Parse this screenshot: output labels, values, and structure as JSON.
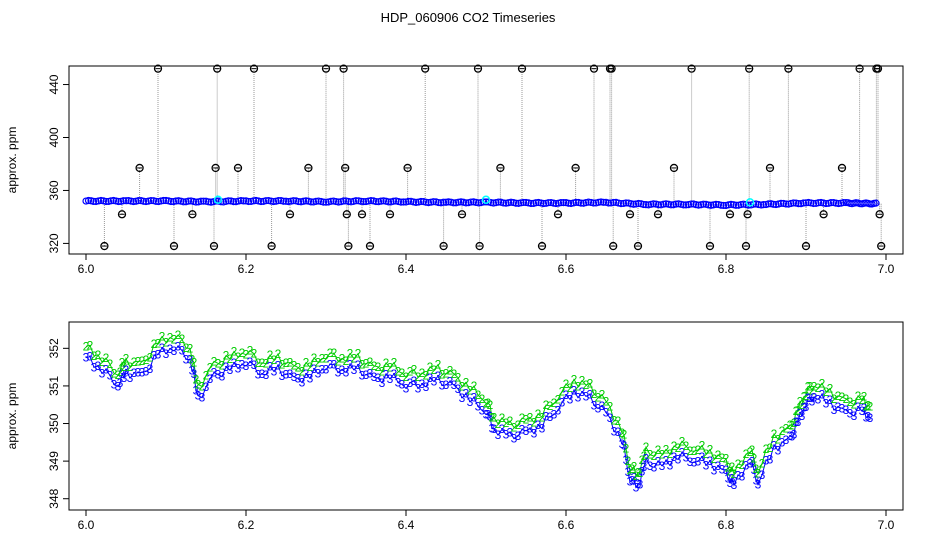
{
  "title": "HDP_060906  CO2 Timeseries",
  "colors": {
    "axis": "#000000",
    "black": "#000000",
    "blue": "#0000ff",
    "cyan": "#00ffff",
    "green": "#00cc00",
    "gray": "#999999"
  },
  "chart_data": [
    {
      "type": "scatter",
      "title": "HDP_060906  CO2 Timeseries",
      "xlabel": "",
      "ylabel": "approx. ppm",
      "xlim": [
        6.0,
        7.0
      ],
      "ylim": [
        312,
        454
      ],
      "xticks": [
        "6.0",
        "6.2",
        "6.4",
        "6.6",
        "6.8",
        "7.0"
      ],
      "yticks": [
        "320",
        "360",
        "400",
        "440"
      ],
      "baseline": [
        [
          6.0,
          352
        ],
        [
          6.05,
          352
        ],
        [
          6.1,
          352
        ],
        [
          6.15,
          351.5
        ],
        [
          6.2,
          352
        ],
        [
          6.25,
          352
        ],
        [
          6.3,
          351.5
        ],
        [
          6.35,
          352
        ],
        [
          6.4,
          351.5
        ],
        [
          6.45,
          351
        ],
        [
          6.5,
          351
        ],
        [
          6.55,
          350.5
        ],
        [
          6.6,
          350.5
        ],
        [
          6.65,
          351
        ],
        [
          6.7,
          349.5
        ],
        [
          6.75,
          349.5
        ],
        [
          6.8,
          349
        ],
        [
          6.85,
          349.5
        ],
        [
          6.9,
          350.5
        ],
        [
          6.95,
          350.5
        ],
        [
          6.99,
          350
        ]
      ],
      "cyan_points": [
        [
          6.165,
          353
        ],
        [
          6.5,
          353
        ],
        [
          6.83,
          351
        ]
      ],
      "outliers": [
        [
          6.023,
          318
        ],
        [
          6.045,
          342
        ],
        [
          6.067,
          377
        ],
        [
          6.09,
          452
        ],
        [
          6.11,
          318
        ],
        [
          6.133,
          342
        ],
        [
          6.16,
          318
        ],
        [
          6.162,
          377
        ],
        [
          6.164,
          452
        ],
        [
          6.19,
          377
        ],
        [
          6.21,
          452
        ],
        [
          6.232,
          318
        ],
        [
          6.255,
          342
        ],
        [
          6.278,
          377
        ],
        [
          6.3,
          452
        ],
        [
          6.322,
          452
        ],
        [
          6.324,
          377
        ],
        [
          6.326,
          342
        ],
        [
          6.328,
          318
        ],
        [
          6.345,
          342
        ],
        [
          6.355,
          318
        ],
        [
          6.38,
          342
        ],
        [
          6.402,
          377
        ],
        [
          6.424,
          452
        ],
        [
          6.447,
          318
        ],
        [
          6.47,
          342
        ],
        [
          6.49,
          452
        ],
        [
          6.492,
          318
        ],
        [
          6.518,
          377
        ],
        [
          6.545,
          452
        ],
        [
          6.57,
          318
        ],
        [
          6.59,
          342
        ],
        [
          6.612,
          377
        ],
        [
          6.635,
          452
        ],
        [
          6.655,
          452
        ],
        [
          6.657,
          452
        ],
        [
          6.659,
          318
        ],
        [
          6.68,
          342
        ],
        [
          6.69,
          318
        ],
        [
          6.715,
          342
        ],
        [
          6.735,
          377
        ],
        [
          6.757,
          452
        ],
        [
          6.78,
          318
        ],
        [
          6.805,
          342
        ],
        [
          6.825,
          318
        ],
        [
          6.827,
          342
        ],
        [
          6.829,
          452
        ],
        [
          6.855,
          377
        ],
        [
          6.878,
          452
        ],
        [
          6.9,
          318
        ],
        [
          6.922,
          342
        ],
        [
          6.945,
          377
        ],
        [
          6.967,
          452
        ],
        [
          6.988,
          452
        ],
        [
          6.99,
          452
        ],
        [
          6.992,
          342
        ],
        [
          6.994,
          318
        ]
      ]
    },
    {
      "type": "scatter",
      "title": "",
      "xlabel": "",
      "ylabel": "approx. ppm",
      "xlim": [
        6.0,
        7.0
      ],
      "ylim": [
        347.7,
        352.7
      ],
      "xticks": [
        "6.0",
        "6.2",
        "6.4",
        "6.6",
        "6.8",
        "7.0"
      ],
      "yticks": [
        "348",
        "349",
        "350",
        "351",
        "352"
      ],
      "series": [
        {
          "marker": "2",
          "color": "#00cc00"
        },
        {
          "marker": "3",
          "color": "#0000ff"
        }
      ],
      "points": [
        [
          6.0,
          351.9
        ],
        [
          6.02,
          351.6
        ],
        [
          6.04,
          351.2
        ],
        [
          6.05,
          351.5
        ],
        [
          6.07,
          351.4
        ],
        [
          6.09,
          352.0
        ],
        [
          6.11,
          352.2
        ],
        [
          6.13,
          351.9
        ],
        [
          6.14,
          350.8
        ],
        [
          6.16,
          351.4
        ],
        [
          6.18,
          351.6
        ],
        [
          6.2,
          351.8
        ],
        [
          6.22,
          351.5
        ],
        [
          6.24,
          351.6
        ],
        [
          6.26,
          351.3
        ],
        [
          6.28,
          351.4
        ],
        [
          6.3,
          351.7
        ],
        [
          6.32,
          351.6
        ],
        [
          6.34,
          351.6
        ],
        [
          6.36,
          351.3
        ],
        [
          6.38,
          351.4
        ],
        [
          6.4,
          351.2
        ],
        [
          6.42,
          351.2
        ],
        [
          6.44,
          351.3
        ],
        [
          6.46,
          351.1
        ],
        [
          6.48,
          350.8
        ],
        [
          6.5,
          350.5
        ],
        [
          6.51,
          350.0
        ],
        [
          6.53,
          349.8
        ],
        [
          6.55,
          349.9
        ],
        [
          6.57,
          350.1
        ],
        [
          6.59,
          350.6
        ],
        [
          6.61,
          351.0
        ],
        [
          6.63,
          350.8
        ],
        [
          6.65,
          350.4
        ],
        [
          6.67,
          349.7
        ],
        [
          6.68,
          348.7
        ],
        [
          6.69,
          348.5
        ],
        [
          6.7,
          349.1
        ],
        [
          6.72,
          349.0
        ],
        [
          6.74,
          349.3
        ],
        [
          6.76,
          349.2
        ],
        [
          6.78,
          349.1
        ],
        [
          6.8,
          348.8
        ],
        [
          6.81,
          348.5
        ],
        [
          6.83,
          349.2
        ],
        [
          6.84,
          348.6
        ],
        [
          6.86,
          349.5
        ],
        [
          6.88,
          349.7
        ],
        [
          6.89,
          350.2
        ],
        [
          6.9,
          350.7
        ],
        [
          6.91,
          350.9
        ],
        [
          6.93,
          350.7
        ],
        [
          6.95,
          350.4
        ],
        [
          6.97,
          350.5
        ],
        [
          6.98,
          350.3
        ]
      ]
    }
  ]
}
